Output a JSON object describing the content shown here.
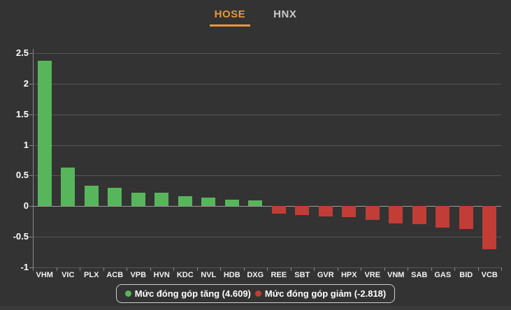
{
  "tabs": {
    "items": [
      {
        "label": "HOSE",
        "active": true
      },
      {
        "label": "HNX",
        "active": false
      }
    ]
  },
  "colors": {
    "background": "#333333",
    "positive": "#57b65b",
    "negative": "#c13d36",
    "accent": "#e6973b",
    "grid": "#565656",
    "zero_line": "#9a9a9a",
    "axis": "#8a8a8a",
    "text": "#ffffff"
  },
  "chart_data": {
    "type": "bar",
    "title": "",
    "xlabel": "",
    "ylabel": "",
    "categories": [
      "VHM",
      "VIC",
      "PLX",
      "ACB",
      "VPB",
      "HVN",
      "KDC",
      "NVL",
      "HDB",
      "DXG",
      "REE",
      "SBT",
      "GVR",
      "HPX",
      "VRE",
      "VNM",
      "SAB",
      "GAS",
      "BID",
      "VCB"
    ],
    "values": [
      2.38,
      0.63,
      0.33,
      0.3,
      0.22,
      0.22,
      0.16,
      0.14,
      0.11,
      0.09,
      -0.12,
      -0.14,
      -0.17,
      -0.18,
      -0.22,
      -0.28,
      -0.29,
      -0.35,
      -0.37,
      -0.7
    ],
    "ylim": [
      -1,
      2.5
    ],
    "yticks": [
      2.5,
      2,
      1.5,
      1,
      0.5,
      0,
      -0.5,
      -1
    ],
    "grid": true,
    "positive_total": "4.609",
    "negative_total": "-2.818",
    "legend": {
      "position": "bottom",
      "items": [
        {
          "label": "Mức đóng góp tăng (4.609)",
          "color": "#57b65b",
          "kind": "positive"
        },
        {
          "label": "Mức đóng góp giảm (-2.818)",
          "color": "#c13d36",
          "kind": "negative"
        }
      ]
    }
  }
}
